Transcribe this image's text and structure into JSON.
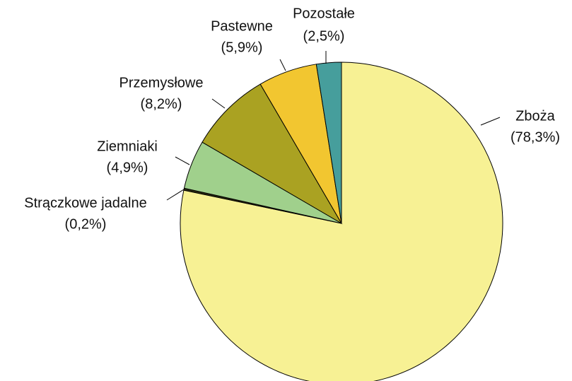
{
  "chart_data": {
    "type": "pie",
    "categories": [
      "Zboża",
      "Strączkowe jadalne",
      "Ziemniaki",
      "Przemysłowe",
      "Pastewne",
      "Pozostałe"
    ],
    "values": [
      78.3,
      0.2,
      4.9,
      8.2,
      5.9,
      2.5
    ],
    "value_labels": [
      "(78,3%)",
      "(0,2%)",
      "(4,9%)",
      "(8,2%)",
      "(5,9%)",
      "(2,5%)"
    ],
    "colors": [
      "#f7f194",
      "#2a2a10",
      "#a0d08c",
      "#aaa222",
      "#f2c630",
      "#469e9c"
    ]
  }
}
